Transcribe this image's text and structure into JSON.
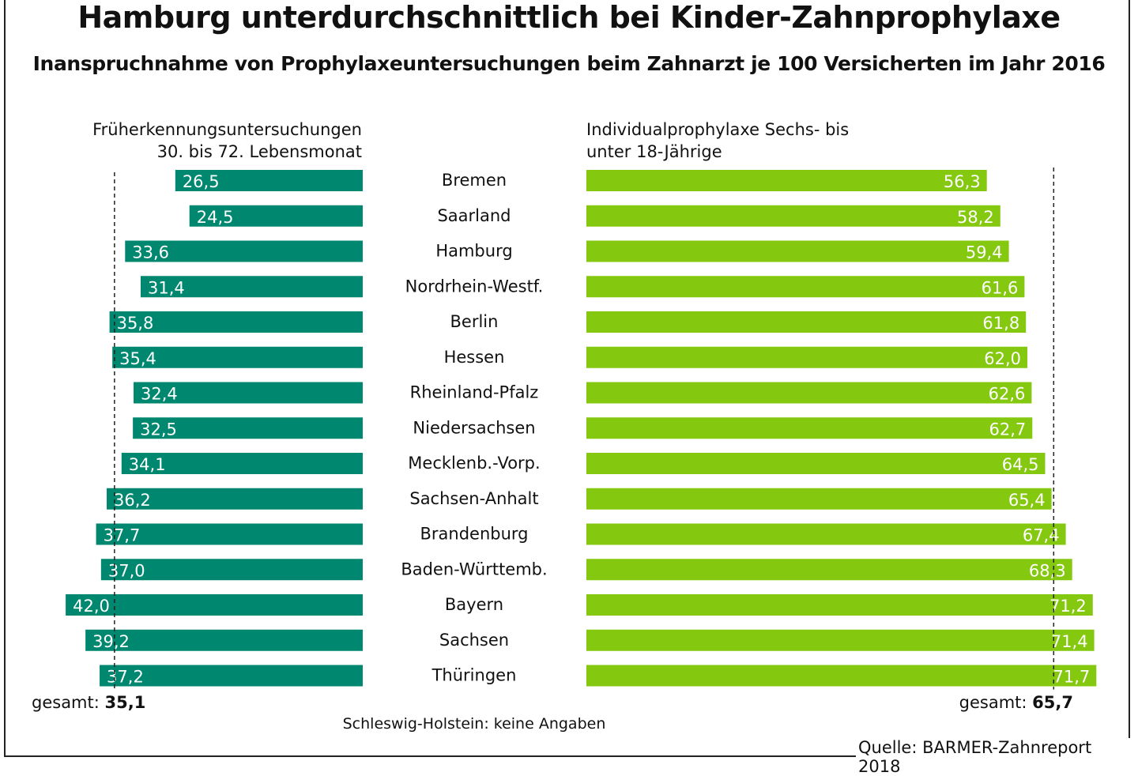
{
  "chart_data": {
    "type": "bar",
    "title": "Hamburg unterdurchschnittlich bei Kinder-Zahnprophylaxe",
    "subtitle": "Inanspruchnahme von Prophylaxeuntersuchungen beim Zahnarzt je 100 Versicherten im Jahr 2016",
    "categories": [
      "Bremen",
      "Saarland",
      "Hamburg",
      "Nordrhein-Westf.",
      "Berlin",
      "Hessen",
      "Rheinland-Pfalz",
      "Niedersachsen",
      "Mecklenb.-Vorp.",
      "Sachsen-Anhalt",
      "Brandenburg",
      "Baden-Württemb.",
      "Bayern",
      "Sachsen",
      "Thüringen"
    ],
    "series": [
      {
        "name_line1": "Früherkennungsuntersuchungen",
        "name_line2": "30. bis 72. Lebensmonat",
        "color": "#00876f",
        "values": [
          26.5,
          24.5,
          33.6,
          31.4,
          35.8,
          35.4,
          32.4,
          32.5,
          34.1,
          36.2,
          37.7,
          37.0,
          42.0,
          39.2,
          37.2
        ],
        "labels": [
          "26,5",
          "24,5",
          "33,6",
          "31,4",
          "35,8",
          "35,4",
          "32,4",
          "32,5",
          "34,1",
          "36,2",
          "37,7",
          "37,0",
          "42,0",
          "39,2",
          "37,2"
        ],
        "total_label": "gesamt:",
        "total_value": "35,1",
        "total": 35.1
      },
      {
        "name_line1": "Individualprophylaxe Sechs- bis",
        "name_line2": "unter 18-Jährige",
        "color": "#84c80f",
        "values": [
          56.3,
          58.2,
          59.4,
          61.6,
          61.8,
          62.0,
          62.6,
          62.7,
          64.5,
          65.4,
          67.4,
          68.3,
          71.2,
          71.4,
          71.7
        ],
        "labels": [
          "56,3",
          "58,2",
          "59,4",
          "61,6",
          "61,8",
          "62,0",
          "62,6",
          "62,7",
          "64,5",
          "65,4",
          "67,4",
          "68,3",
          "71,2",
          "71,4",
          "71,7"
        ],
        "total_label": "gesamt:",
        "total_value": "65,7",
        "total": 65.7
      }
    ],
    "note": "Schleswig-Holstein: keine Angaben",
    "source": "Quelle: BARMER-Zahnreport 2018",
    "orientation": "horizontal, mirrored (left series grows leftward)",
    "grid": false
  }
}
